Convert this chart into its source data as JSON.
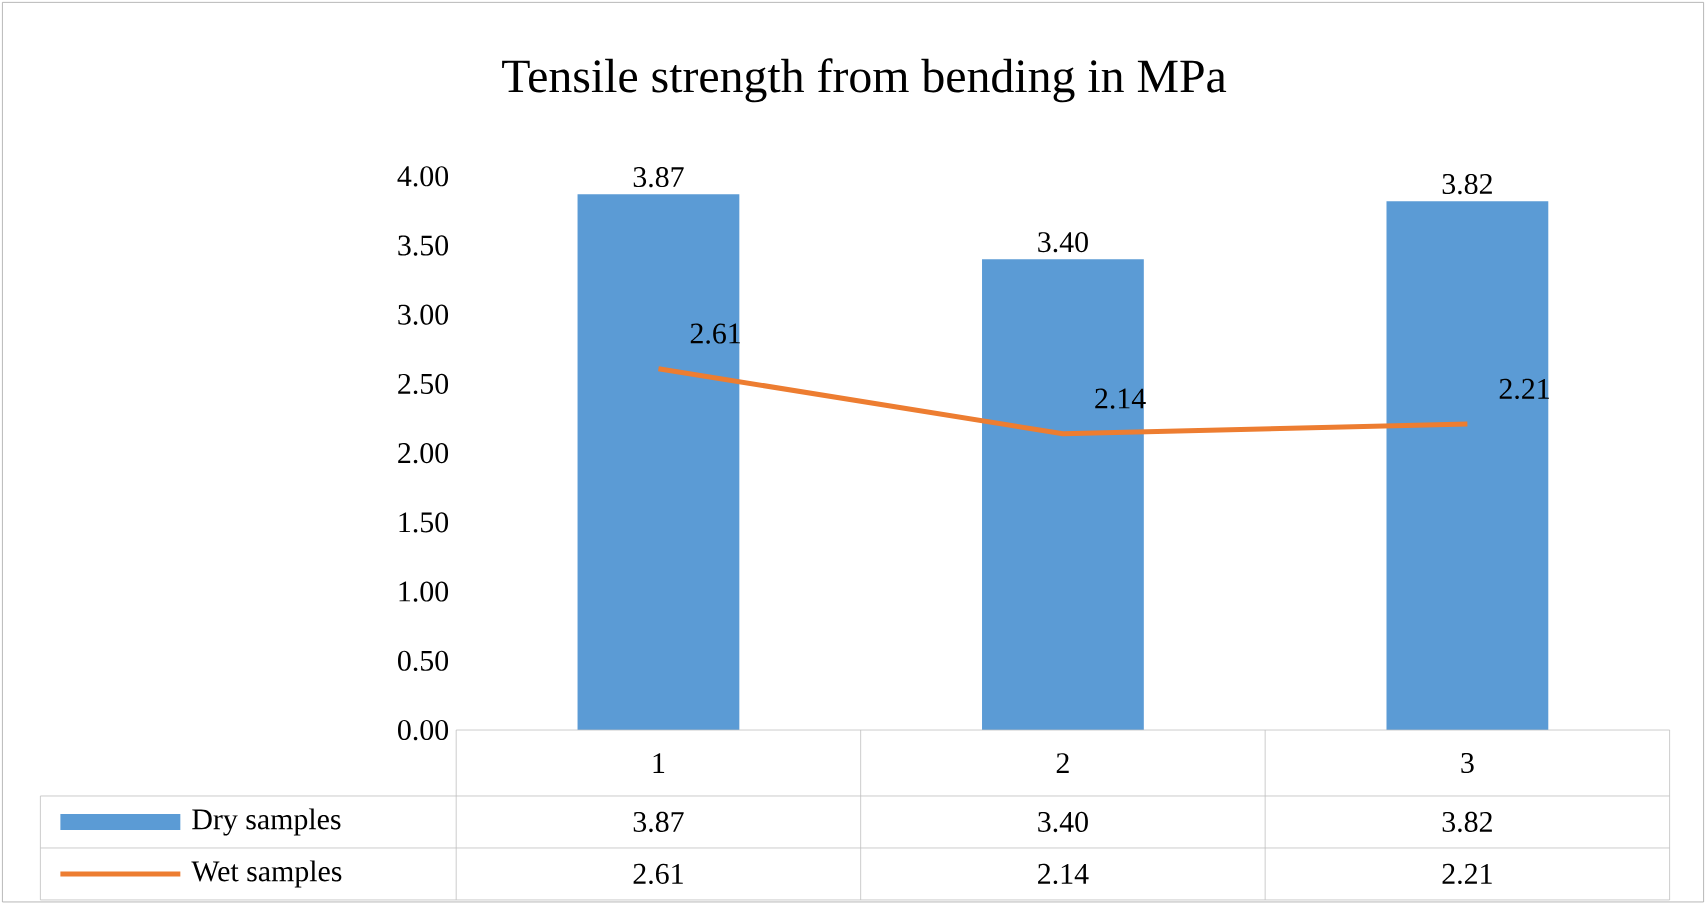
{
  "chart_data": {
    "type": "bar",
    "title": "Tensile strength from bending in MPa",
    "categories": [
      "1",
      "2",
      "3"
    ],
    "series": [
      {
        "name": "Dry samples",
        "color": "#5b9bd5",
        "values": [
          3.87,
          3.4,
          3.82
        ],
        "value_labels": [
          "3.87",
          "3.40",
          "3.82"
        ]
      },
      {
        "name": "Wet samples",
        "type": "line",
        "color": "#ed7d31",
        "values": [
          2.61,
          2.14,
          2.21
        ],
        "value_labels": [
          "2.61",
          "2.14",
          "2.21"
        ]
      }
    ],
    "ylim": [
      0,
      4
    ],
    "yticks": [
      {
        "value": 0,
        "label": "0.00"
      },
      {
        "value": 0.5,
        "label": "0.50"
      },
      {
        "value": 1,
        "label": "1.00"
      },
      {
        "value": 1.5,
        "label": "1.50"
      },
      {
        "value": 2,
        "label": "2.00"
      },
      {
        "value": 2.5,
        "label": "2.50"
      },
      {
        "value": 3,
        "label": "3.00"
      },
      {
        "value": 3.5,
        "label": "3.50"
      },
      {
        "value": 4,
        "label": "4.00"
      }
    ],
    "legend": "bottom"
  }
}
